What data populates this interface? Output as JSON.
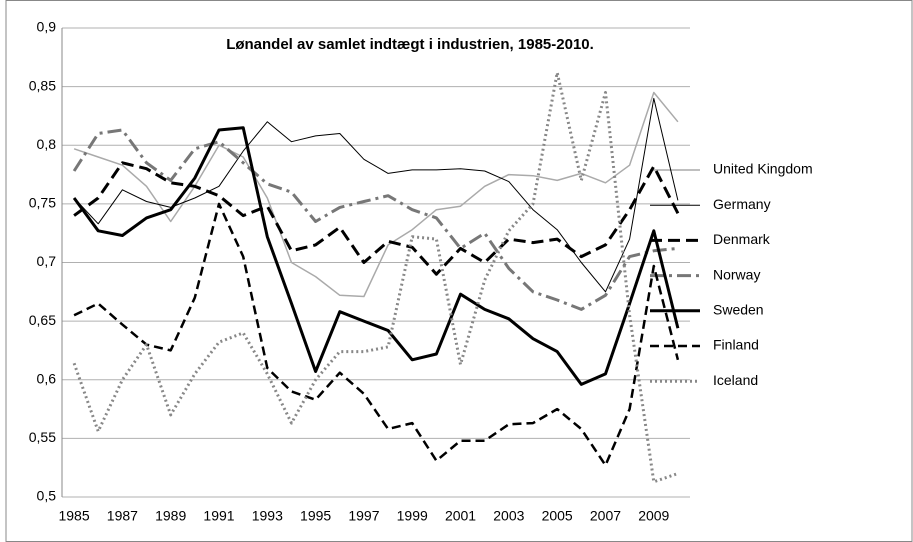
{
  "chart_data": {
    "type": "line",
    "title": "Lønandel av samlet indtægt i industrien, 1985-2010.",
    "categories": [
      1985,
      null,
      1987,
      null,
      1989,
      null,
      1991,
      null,
      1993,
      null,
      1995,
      null,
      1997,
      null,
      1999,
      null,
      2001,
      null,
      2003,
      null,
      2005,
      null,
      2007,
      null,
      2009,
      null
    ],
    "series": [
      {
        "name": "United Kingdom",
        "color": "#aaaaaa",
        "values": [
          0.797,
          0.79,
          0.783,
          0.765,
          0.735,
          0.765,
          0.8,
          0.79,
          0.755,
          0.7,
          0.688,
          0.672,
          0.671,
          0.715,
          0.728,
          0.745,
          0.748,
          0.765,
          0.775,
          0.774,
          0.77,
          0.776,
          0.768,
          0.783,
          0.845,
          0.82
        ]
      },
      {
        "name": "Germany",
        "color": "#000000",
        "values": [
          0.755,
          0.733,
          0.762,
          0.752,
          0.747,
          0.755,
          0.765,
          0.795,
          0.82,
          0.803,
          0.808,
          0.81,
          0.788,
          0.776,
          0.779,
          0.779,
          0.78,
          0.778,
          0.769,
          0.745,
          0.728,
          0.7,
          0.675,
          0.72,
          0.84,
          0.753
        ]
      },
      {
        "name": "Denmark",
        "color": "#000000",
        "values": [
          0.74,
          0.755,
          0.785,
          0.78,
          0.768,
          0.765,
          0.757,
          0.74,
          0.748,
          0.71,
          0.715,
          0.73,
          0.7,
          0.718,
          0.713,
          0.69,
          0.712,
          0.7,
          0.72,
          0.717,
          0.72,
          0.705,
          0.715,
          0.745,
          0.782,
          0.742
        ]
      },
      {
        "name": "Norway",
        "color": "#777777",
        "values": [
          0.778,
          0.81,
          0.813,
          0.785,
          0.77,
          0.797,
          0.803,
          0.785,
          0.767,
          0.76,
          0.735,
          0.747,
          0.752,
          0.757,
          0.745,
          0.738,
          0.712,
          0.725,
          0.695,
          0.675,
          0.668,
          0.66,
          0.672,
          0.705,
          0.71,
          0.712
        ]
      },
      {
        "name": "Sweden",
        "color": "#000000",
        "values": [
          0.755,
          0.727,
          0.723,
          0.738,
          0.745,
          0.772,
          0.813,
          0.815,
          0.722,
          0.665,
          0.607,
          0.658,
          0.65,
          0.642,
          0.617,
          0.622,
          0.673,
          0.66,
          0.652,
          0.635,
          0.624,
          0.596,
          0.605,
          0.665,
          0.727,
          0.644
        ]
      },
      {
        "name": "Finland",
        "color": "#000000",
        "values": [
          0.655,
          0.665,
          0.647,
          0.63,
          0.625,
          0.67,
          0.75,
          0.705,
          0.61,
          0.59,
          0.583,
          0.606,
          0.588,
          0.558,
          0.563,
          0.531,
          0.548,
          0.548,
          0.562,
          0.563,
          0.575,
          0.558,
          0.527,
          0.575,
          0.697,
          0.617
        ]
      },
      {
        "name": "Iceland",
        "color": "#888888",
        "values": [
          0.614,
          0.556,
          0.6,
          0.63,
          0.57,
          0.605,
          0.632,
          0.64,
          0.605,
          0.563,
          0.6,
          0.624,
          0.624,
          0.628,
          0.722,
          0.72,
          0.613,
          0.685,
          0.727,
          0.75,
          0.862,
          0.77,
          0.845,
          0.655,
          0.513,
          0.52
        ]
      }
    ],
    "ylim": [
      0.5,
      0.9
    ],
    "yticks": [
      {
        "value": 0.5,
        "label": "0,5"
      },
      {
        "value": 0.55,
        "label": "0,55"
      },
      {
        "value": 0.6,
        "label": "0,6"
      },
      {
        "value": 0.65,
        "label": "0,65"
      },
      {
        "value": 0.7,
        "label": "0,7"
      },
      {
        "value": 0.75,
        "label": "0,75"
      },
      {
        "value": 0.8,
        "label": "0,8"
      },
      {
        "value": 0.85,
        "label": "0,85"
      },
      {
        "value": 0.9,
        "label": "0,9"
      }
    ],
    "grid": true,
    "legend": "right"
  }
}
